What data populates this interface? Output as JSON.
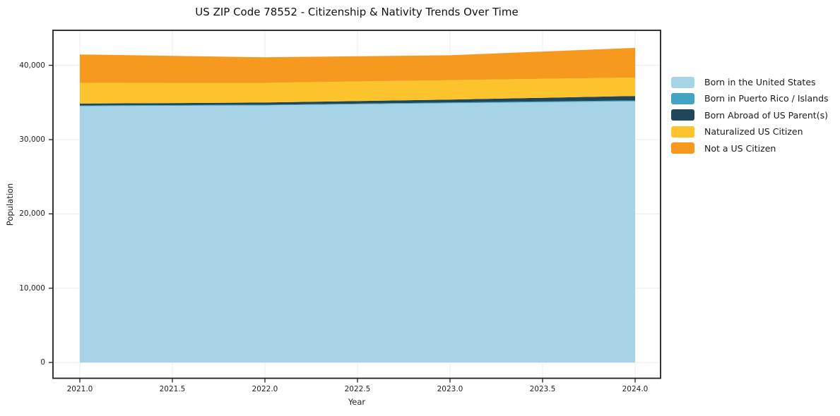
{
  "chart_data": {
    "type": "area",
    "stacked": true,
    "title": "US ZIP Code 78552 - Citizenship & Nativity Trends Over Time",
    "xlabel": "Year",
    "ylabel": "Population",
    "x": [
      2021,
      2022,
      2023,
      2024
    ],
    "series": [
      {
        "name": "Born in the United States",
        "color": "#a6d4e6",
        "values": [
          34500,
          34600,
          34900,
          35150
        ]
      },
      {
        "name": "Born in Puerto Rico / Islands",
        "color": "#41a4c2",
        "values": [
          90,
          90,
          100,
          120
        ]
      },
      {
        "name": "Born Abroad of US Parent(s)",
        "color": "#21465a",
        "values": [
          260,
          300,
          380,
          600
        ]
      },
      {
        "name": "Naturalized US Citizen",
        "color": "#fcc32d",
        "values": [
          2780,
          2650,
          2620,
          2480
        ]
      },
      {
        "name": "Not a US Citizen",
        "color": "#f8991f",
        "values": [
          3830,
          3440,
          3350,
          4000
        ]
      }
    ],
    "x_tick_labels": [
      "2021.0",
      "2021.5",
      "2022.0",
      "2022.5",
      "2023.0",
      "2023.5",
      "2024.0"
    ],
    "x_tick_values": [
      2021,
      2021.5,
      2022,
      2022.5,
      2023,
      2023.5,
      2024
    ],
    "y_tick_labels": [
      "0",
      "10,000",
      "20,000",
      "30,000",
      "40,000"
    ],
    "y_tick_values": [
      0,
      10000,
      20000,
      30000,
      40000
    ],
    "xlim": [
      2020.85,
      2024.15
    ],
    "ylim": [
      -2100,
      44700
    ],
    "grid": true,
    "legend_position": "right"
  },
  "colors": {
    "grid": "#ebebeb",
    "spine": "#1f1f1f",
    "background": "#ffffff"
  }
}
